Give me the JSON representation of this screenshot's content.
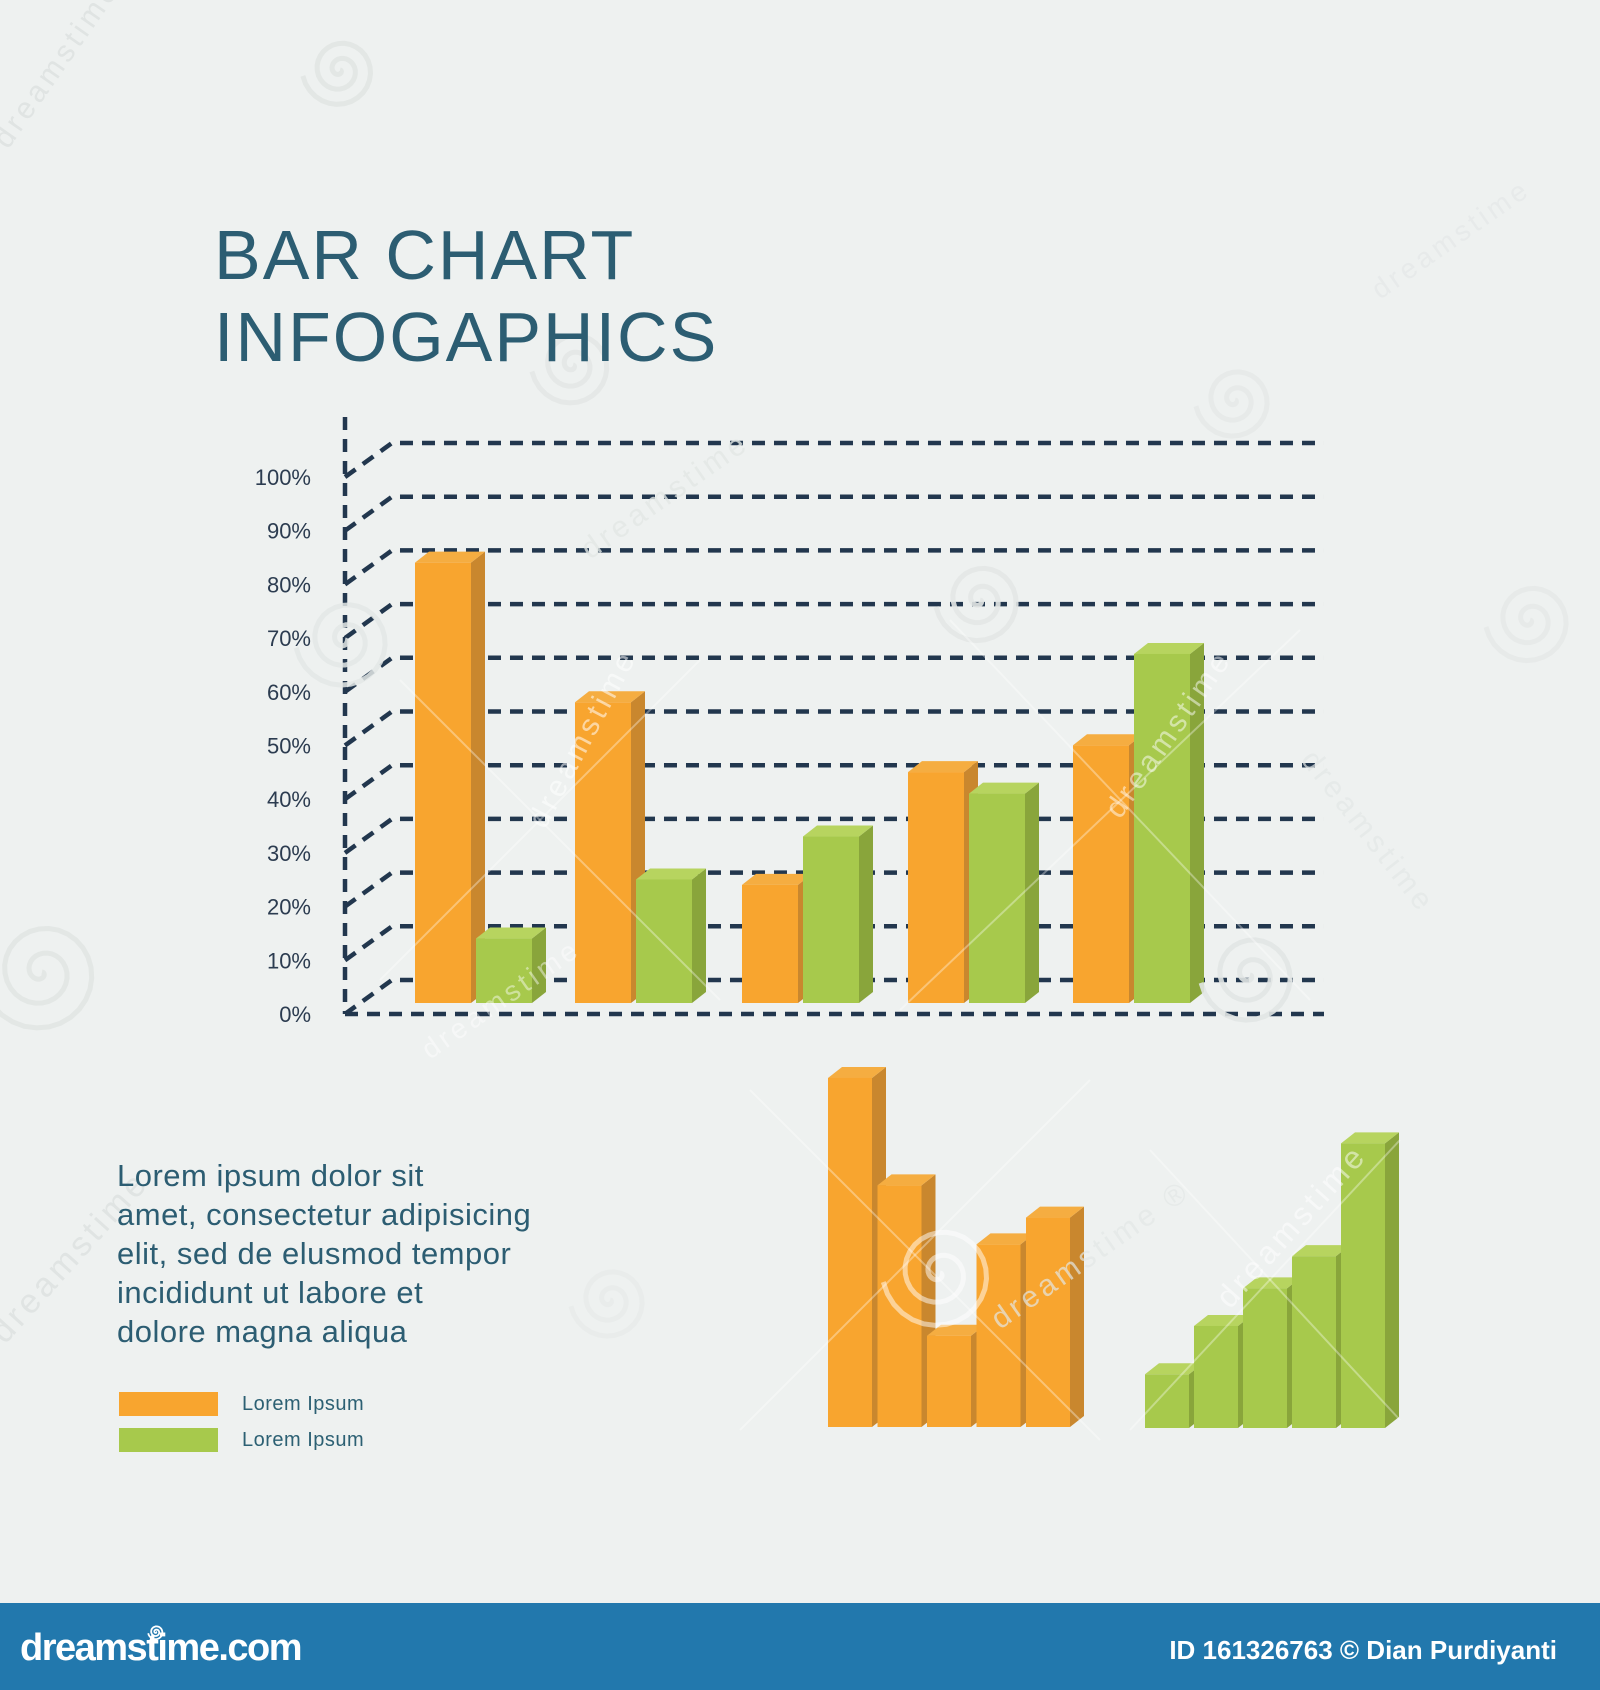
{
  "title": {
    "line1": "BAR CHART",
    "line2": "INFOGAPHICS"
  },
  "paragraph": {
    "lines": [
      "Lorem ipsum dolor sit",
      "amet, consectetur adipisicing",
      "elit, sed de elusmod tempor",
      "incididunt ut labore et",
      "dolore magna aliqua"
    ]
  },
  "legend": {
    "items": [
      {
        "label": "Lorem Ipsum",
        "color": "#F8A52F"
      },
      {
        "label": "Lorem Ipsum",
        "color": "#A7C94C"
      }
    ]
  },
  "watermark": {
    "brand": "dreamstime",
    "registered": "®"
  },
  "footer": {
    "logo": "dreamstime.com",
    "credit": "ID 161326763 © Dian Purdiyanti",
    "background": "#2278AD"
  },
  "colors": {
    "background": "#EEF1F0",
    "grid": "#22374E",
    "axis_label": "#2C3C50",
    "title_text": "#2C5D72",
    "body_text": "#2C5D72",
    "orange": {
      "front": "#F8A52F",
      "top": "#F5AD41",
      "side": "#C9872E"
    },
    "green": {
      "front": "#A7C94C",
      "top": "#B7D45F",
      "side": "#89A53B"
    },
    "footer_bg": "#2278AD",
    "footer_text": "#FFFFFF"
  },
  "chart_data": [
    {
      "type": "bar",
      "style": "3d-columns-dashed-grid",
      "title": "BAR CHART INFOGAPHICS",
      "xlabel": "",
      "ylabel": "",
      "ylim": [
        0,
        100
      ],
      "y_ticks": [
        100,
        90,
        80,
        70,
        60,
        50,
        40,
        30,
        20,
        10,
        0
      ],
      "y_tick_unit": "%",
      "grid": "dashed horizontal, 3d offset",
      "legend_position": "bottom-left",
      "groups": 5,
      "series": [
        {
          "name": "Lorem Ipsum",
          "color": "orange",
          "values": [
            82,
            56,
            22,
            43,
            48
          ]
        },
        {
          "name": "Lorem Ipsum",
          "color": "green",
          "values": [
            12,
            23,
            31,
            39,
            65
          ]
        }
      ]
    },
    {
      "type": "bar",
      "style": "3d-columns-no-axis",
      "title": "",
      "series": [
        {
          "name": "Lorem Ipsum",
          "color": "orange",
          "values": [
            65,
            45,
            17,
            34,
            39
          ]
        }
      ],
      "values_unit": "relative (unlabeled)"
    },
    {
      "type": "bar",
      "style": "3d-columns-no-axis",
      "title": "",
      "series": [
        {
          "name": "Lorem Ipsum",
          "color": "green",
          "values": [
            10,
            19,
            26,
            32,
            53
          ]
        }
      ],
      "values_unit": "relative (unlabeled)"
    }
  ]
}
